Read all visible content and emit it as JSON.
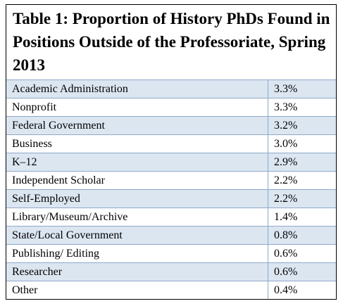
{
  "header": {
    "title": "Table 1: Proportion of History PhDs Found in Positions Outside of the Professoriate, Spring 2013"
  },
  "table": {
    "rows": [
      [
        "Academic Administration",
        "3.3%"
      ],
      [
        "Nonprofit",
        "3.3%"
      ],
      [
        "Federal Government",
        "3.2%"
      ],
      [
        "Business",
        "3.0%"
      ],
      [
        "K–12",
        "2.9%"
      ],
      [
        "Independent Scholar",
        "2.2%"
      ],
      [
        "Self-Employed",
        "2.2%"
      ],
      [
        "Library/Museum/Archive",
        "1.4%"
      ],
      [
        "State/Local Government",
        "0.8%"
      ],
      [
        "Publishing/ Editing",
        "0.6%"
      ],
      [
        "Researcher",
        "0.6%"
      ],
      [
        "Other",
        "0.4%"
      ]
    ]
  }
}
